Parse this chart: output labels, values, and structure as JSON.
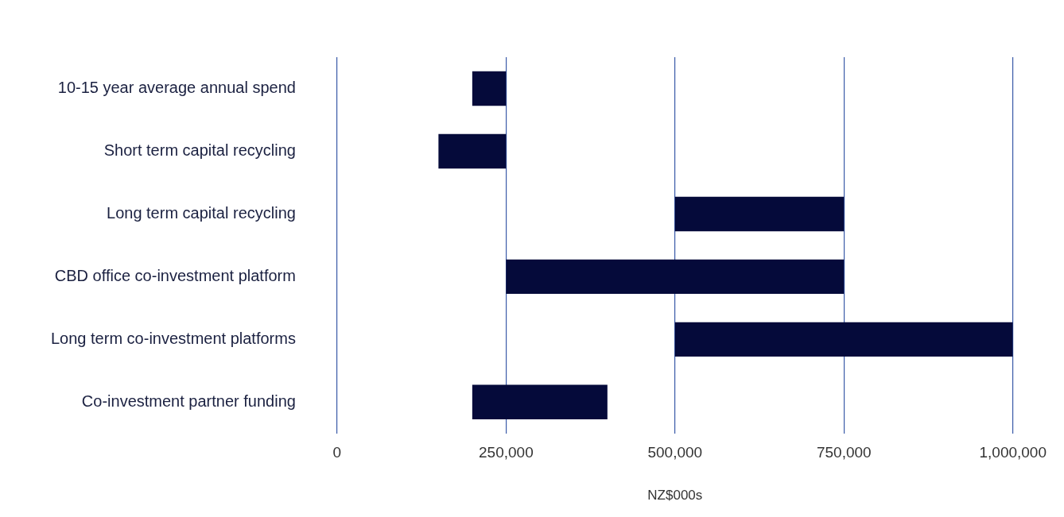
{
  "chart_data": {
    "type": "bar",
    "orientation": "horizontal",
    "xlabel": "NZ$000s",
    "categories": [
      "10-15 year average annual spend",
      "Short term capital recycling",
      "Long term capital recycling",
      "CBD office co-investment platform",
      "Long term co-investment platforms",
      "Co-investment partner funding"
    ],
    "base": [
      200000,
      150000,
      500000,
      250000,
      500000,
      200000
    ],
    "values": [
      50000,
      100000,
      250000,
      500000,
      500000,
      200000
    ],
    "color": "#050a3a",
    "xlim": [
      0,
      1000000
    ],
    "xticks": [
      0,
      {
        "value": 250000,
        "label": "250,000"
      },
      {
        "value": 500000,
        "label": "500,000"
      },
      {
        "value": 750000,
        "label": "750,000"
      },
      {
        "value": 1000000,
        "label": "1,000,000"
      }
    ],
    "grid": "x",
    "legend": false
  }
}
